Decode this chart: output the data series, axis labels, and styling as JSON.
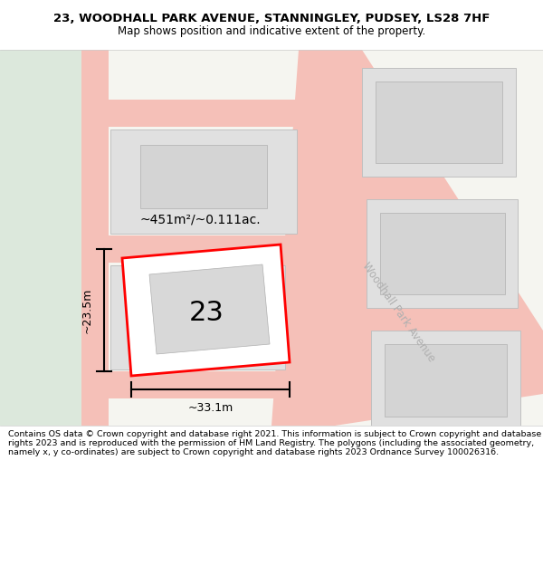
{
  "title_line1": "23, WOODHALL PARK AVENUE, STANNINGLEY, PUDSEY, LS28 7HF",
  "title_line2": "Map shows position and indicative extent of the property.",
  "footer_text": "Contains OS data © Crown copyright and database right 2021. This information is subject to Crown copyright and database rights 2023 and is reproduced with the permission of HM Land Registry. The polygons (including the associated geometry, namely x, y co-ordinates) are subject to Crown copyright and database rights 2023 Ordnance Survey 100026316.",
  "map_bg": "#f2f2f2",
  "left_bg": "#e8ede8",
  "road_color": "#f5c0b8",
  "building_fill": "#e0e0e0",
  "building_edge": "#c0c0c0",
  "highlight_color": "#ff0000",
  "highlight_fill": "#ffffff",
  "street_label": "Woodhall Park Avenue",
  "house_number": "23",
  "area_label": "~451m²/~0.111ac.",
  "width_label": "~33.1m",
  "height_label": "~23.5m",
  "footer_bg": "#ffffff",
  "title_bg": "#ffffff",
  "title_fontsize": 9.5,
  "subtitle_fontsize": 8.5,
  "footer_fontsize": 6.8
}
